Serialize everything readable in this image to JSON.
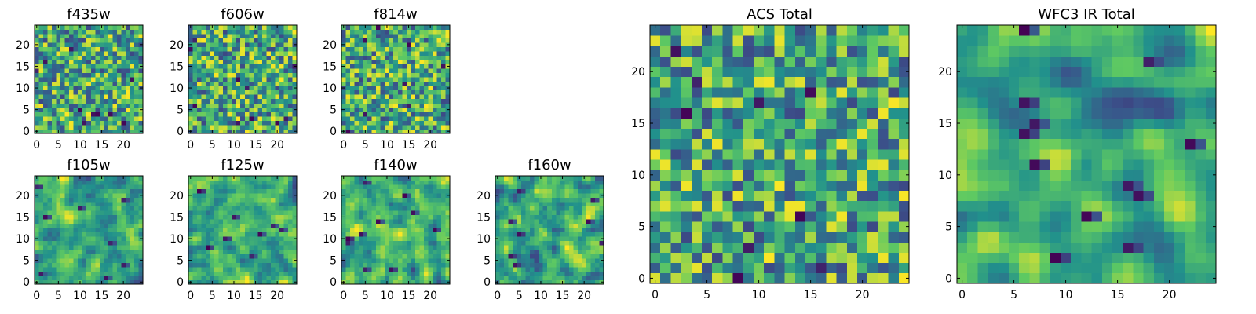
{
  "colors": {
    "colormap": [
      "#440154",
      "#3b528b",
      "#21918c",
      "#5ec962",
      "#fde725"
    ],
    "frame": "#000000"
  },
  "chart_data": [
    {
      "type": "heatmap",
      "title": "f435w",
      "grid_size": 25,
      "xlim": [
        0,
        24
      ],
      "ylim": [
        0,
        24
      ],
      "xticks": [
        0,
        5,
        10,
        15,
        20
      ],
      "yticks": [
        0,
        5,
        10,
        15,
        20
      ],
      "xtick_labels": [
        "0",
        "5",
        "10",
        "15",
        "20"
      ],
      "ytick_labels": [
        "0",
        "5",
        "10",
        "15",
        "20"
      ],
      "seed": 11,
      "smooth": 0,
      "blobs": 10,
      "values_note": "per-pixel noise (values not legible)"
    },
    {
      "type": "heatmap",
      "title": "f606w",
      "grid_size": 25,
      "xlim": [
        0,
        24
      ],
      "ylim": [
        0,
        24
      ],
      "xticks": [
        0,
        5,
        10,
        15,
        20
      ],
      "yticks": [
        0,
        5,
        10,
        15,
        20
      ],
      "xtick_labels": [
        "0",
        "5",
        "10",
        "15",
        "20"
      ],
      "ytick_labels": [
        "0",
        "5",
        "10",
        "15",
        "20"
      ],
      "seed": 23,
      "smooth": 0,
      "blobs": 10,
      "values_note": "per-pixel noise (values not legible)"
    },
    {
      "type": "heatmap",
      "title": "f814w",
      "grid_size": 25,
      "xlim": [
        0,
        24
      ],
      "ylim": [
        0,
        24
      ],
      "xticks": [
        0,
        5,
        10,
        15,
        20
      ],
      "yticks": [
        0,
        5,
        10,
        15,
        20
      ],
      "xtick_labels": [
        "0",
        "5",
        "10",
        "15",
        "20"
      ],
      "ytick_labels": [
        "0",
        "5",
        "10",
        "15",
        "20"
      ],
      "seed": 37,
      "smooth": 0,
      "blobs": 8,
      "values_note": "per-pixel noise (values not legible)"
    },
    {
      "type": "heatmap",
      "title": "f105w",
      "grid_size": 25,
      "xlim": [
        0,
        24
      ],
      "ylim": [
        0,
        24
      ],
      "xticks": [
        0,
        5,
        10,
        15,
        20
      ],
      "yticks": [
        0,
        5,
        10,
        15,
        20
      ],
      "xtick_labels": [
        "0",
        "5",
        "10",
        "15",
        "20"
      ],
      "ytick_labels": [
        "0",
        "5",
        "10",
        "15",
        "20"
      ],
      "seed": 41,
      "smooth": 1,
      "blobs": 8,
      "values_note": "smoothed noise (values not legible)"
    },
    {
      "type": "heatmap",
      "title": "f125w",
      "grid_size": 25,
      "xlim": [
        0,
        24
      ],
      "ylim": [
        0,
        24
      ],
      "xticks": [
        0,
        5,
        10,
        15,
        20
      ],
      "yticks": [
        0,
        5,
        10,
        15,
        20
      ],
      "xtick_labels": [
        "0",
        "5",
        "10",
        "15",
        "20"
      ],
      "ytick_labels": [
        "0",
        "5",
        "10",
        "15",
        "20"
      ],
      "seed": 53,
      "smooth": 1,
      "blobs": 8,
      "values_note": "smoothed noise (values not legible)"
    },
    {
      "type": "heatmap",
      "title": "f140w",
      "grid_size": 25,
      "xlim": [
        0,
        24
      ],
      "ylim": [
        0,
        24
      ],
      "xticks": [
        0,
        5,
        10,
        15,
        20
      ],
      "yticks": [
        0,
        5,
        10,
        15,
        20
      ],
      "xtick_labels": [
        "0",
        "5",
        "10",
        "15",
        "20"
      ],
      "ytick_labels": [
        "0",
        "5",
        "10",
        "15",
        "20"
      ],
      "seed": 67,
      "smooth": 1,
      "blobs": 10,
      "values_note": "smoothed noise (values not legible)"
    },
    {
      "type": "heatmap",
      "title": "f160w",
      "grid_size": 25,
      "xlim": [
        0,
        24
      ],
      "ylim": [
        0,
        24
      ],
      "xticks": [
        0,
        5,
        10,
        15,
        20
      ],
      "yticks": [
        0,
        5,
        10,
        15,
        20
      ],
      "xtick_labels": [
        "0",
        "5",
        "10",
        "15",
        "20"
      ],
      "ytick_labels": [
        "0",
        "5",
        "10",
        "15",
        "20"
      ],
      "seed": 79,
      "smooth": 1,
      "blobs": 8,
      "values_note": "smoothed noise (values not legible)"
    },
    {
      "type": "heatmap",
      "title": "ACS Total",
      "grid_size": 25,
      "xlim": [
        0,
        24
      ],
      "ylim": [
        0,
        24
      ],
      "xticks": [
        0,
        5,
        10,
        15,
        20
      ],
      "yticks": [
        0,
        5,
        10,
        15,
        20
      ],
      "xtick_labels": [
        "0",
        "5",
        "10",
        "15",
        "20"
      ],
      "ytick_labels": [
        "0",
        "5",
        "10",
        "15",
        "20"
      ],
      "seed": 89,
      "smooth": 0,
      "blobs": 9,
      "values_note": "per-pixel noise (values not legible)"
    },
    {
      "type": "heatmap",
      "title": "WFC3 IR Total",
      "grid_size": 25,
      "xlim": [
        0,
        24
      ],
      "ylim": [
        0,
        24
      ],
      "xticks": [
        0,
        5,
        10,
        15,
        20
      ],
      "yticks": [
        0,
        5,
        10,
        15,
        20
      ],
      "xtick_labels": [
        "0",
        "5",
        "10",
        "15",
        "20"
      ],
      "ytick_labels": [
        "0",
        "5",
        "10",
        "15",
        "20"
      ],
      "seed": 97,
      "smooth": 2,
      "blobs": 12,
      "values_note": "smoothed noise (values not legible)"
    }
  ]
}
